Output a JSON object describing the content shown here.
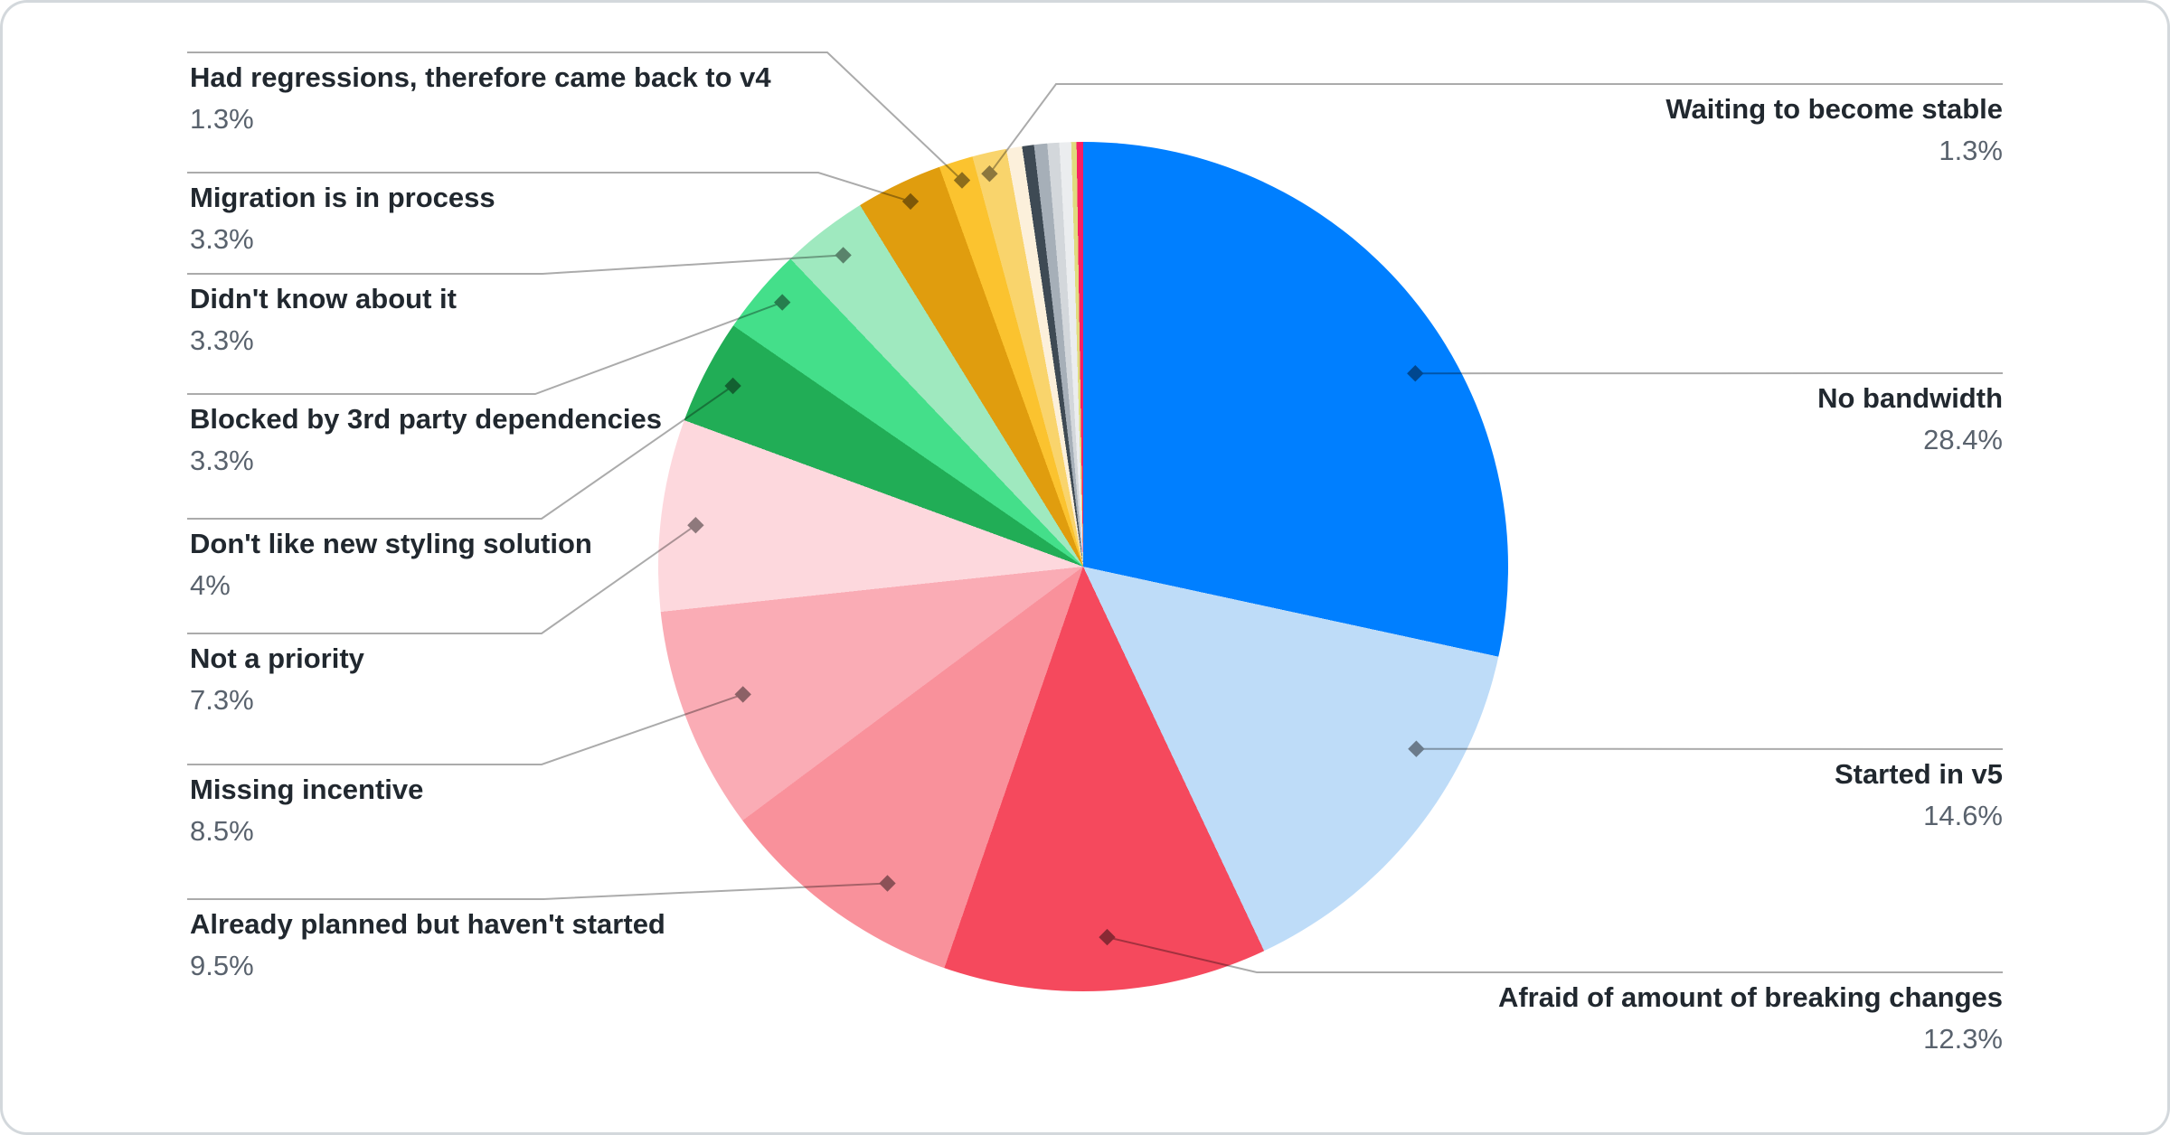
{
  "card": {
    "background": "#FFFFFF",
    "border_color": "#D3D8DC",
    "leader_line_color": "#ABABAB",
    "label_title_color": "#21282F",
    "label_value_color": "#59626D"
  },
  "chart_data": {
    "type": "pie",
    "units": "percent",
    "legend_position": "callout-labels-both-sides",
    "grid": false,
    "slices": [
      {
        "label": "No bandwidth",
        "pct": 28.4,
        "display": "28.4%",
        "color": "#007FFF",
        "side": "right"
      },
      {
        "label": "Started in v5",
        "pct": 14.6,
        "display": "14.6%",
        "color": "#BEDCF8",
        "side": "right"
      },
      {
        "label": "Afraid of amount of breaking changes",
        "pct": 12.3,
        "display": "12.3%",
        "color": "#F5495D",
        "side": "right"
      },
      {
        "label": "Already planned but haven't started",
        "pct": 9.5,
        "display": "9.5%",
        "color": "#F9919B",
        "side": "left"
      },
      {
        "label": "Missing incentive",
        "pct": 8.5,
        "display": "8.5%",
        "color": "#FAACB5",
        "side": "left"
      },
      {
        "label": "Not a priority",
        "pct": 7.3,
        "display": "7.3%",
        "color": "#FDD8DD",
        "side": "left"
      },
      {
        "label": "Don't like new styling solution",
        "pct": 4,
        "display": "4%",
        "color": "#21AD56",
        "side": "left"
      },
      {
        "label": "Blocked by 3rd party dependencies",
        "pct": 3.3,
        "display": "3.3%",
        "color": "#44DF8A",
        "side": "left"
      },
      {
        "label": "Didn't know about it",
        "pct": 3.3,
        "display": "3.3%",
        "color": "#9FE9BF",
        "side": "left"
      },
      {
        "label": "Migration is in process",
        "pct": 3.3,
        "display": "3.3%",
        "color": "#E09D0E",
        "side": "left"
      },
      {
        "label": "Had regressions, therefore came back to v4",
        "pct": 1.3,
        "display": "1.3%",
        "color": "#FBC32F",
        "side": "left"
      },
      {
        "label": "Waiting to become stable",
        "pct": 1.3,
        "display": "1.3%",
        "color": "#F9D46C",
        "side": "right"
      },
      {
        "label": "",
        "pct": 0.6,
        "display": "",
        "color": "#FCF0DB",
        "side": "none"
      },
      {
        "label": "",
        "pct": 0.45,
        "display": "",
        "color": "#3E4A54",
        "side": "none"
      },
      {
        "label": "",
        "pct": 0.5,
        "display": "",
        "color": "#A6AFB8",
        "side": "none"
      },
      {
        "label": "",
        "pct": 0.45,
        "display": "",
        "color": "#D3D7DB",
        "side": "none"
      },
      {
        "label": "",
        "pct": 0.45,
        "display": "",
        "color": "#EBEDEF",
        "side": "none"
      },
      {
        "label": "",
        "pct": 0.2,
        "display": "",
        "color": "#E0DB7E",
        "side": "none"
      },
      {
        "label": "",
        "pct": 0.25,
        "display": "",
        "color": "#F81F63",
        "side": "none"
      }
    ]
  }
}
